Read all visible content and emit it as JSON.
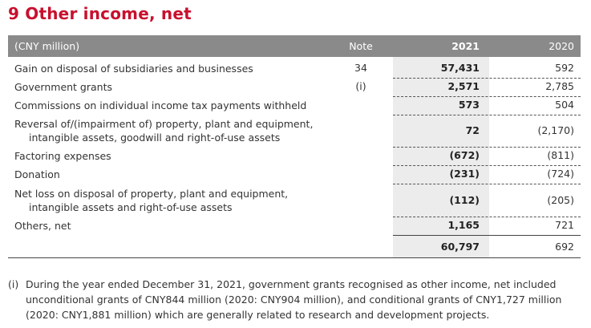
{
  "title": "9 Other income, net",
  "table": {
    "headers": {
      "label": "(CNY million)",
      "note": "Note",
      "y2021": "2021",
      "y2020": "2020"
    },
    "rows": [
      {
        "label": [
          "Gain on disposal of subsidiaries and businesses"
        ],
        "note": "34",
        "y2021": "57,431",
        "y2020": "592"
      },
      {
        "label": [
          "Government grants"
        ],
        "note": "(i)",
        "y2021": "2,571",
        "y2020": "2,785"
      },
      {
        "label": [
          "Commissions on individual income tax payments withheld"
        ],
        "note": "",
        "y2021": "573",
        "y2020": "504"
      },
      {
        "label": [
          "Reversal of/(impairment of) property, plant and equipment,",
          "intangible assets, goodwill and right-of-use assets"
        ],
        "note": "",
        "y2021": "72",
        "y2020": "(2,170)"
      },
      {
        "label": [
          "Factoring expenses"
        ],
        "note": "",
        "y2021": "(672)",
        "y2020": "(811)"
      },
      {
        "label": [
          "Donation"
        ],
        "note": "",
        "y2021": "(231)",
        "y2020": "(724)"
      },
      {
        "label": [
          "Net loss on disposal of property, plant and equipment,",
          "intangible assets and right-of-use assets"
        ],
        "note": "",
        "y2021": "(112)",
        "y2020": "(205)"
      },
      {
        "label": [
          "Others, net"
        ],
        "note": "",
        "y2021": "1,165",
        "y2020": "721"
      }
    ],
    "total": {
      "y2021": "60,797",
      "y2020": "692"
    }
  },
  "footnote": {
    "marker": "(i)",
    "lines": [
      "During the year ended December 31, 2021, government grants recognised as other income, net included",
      "unconditional grants of CNY844 million (2020: CNY904 million), and conditional grants of CNY1,727 million",
      "(2020: CNY1,881 million) which are generally related to research and development projects."
    ]
  }
}
